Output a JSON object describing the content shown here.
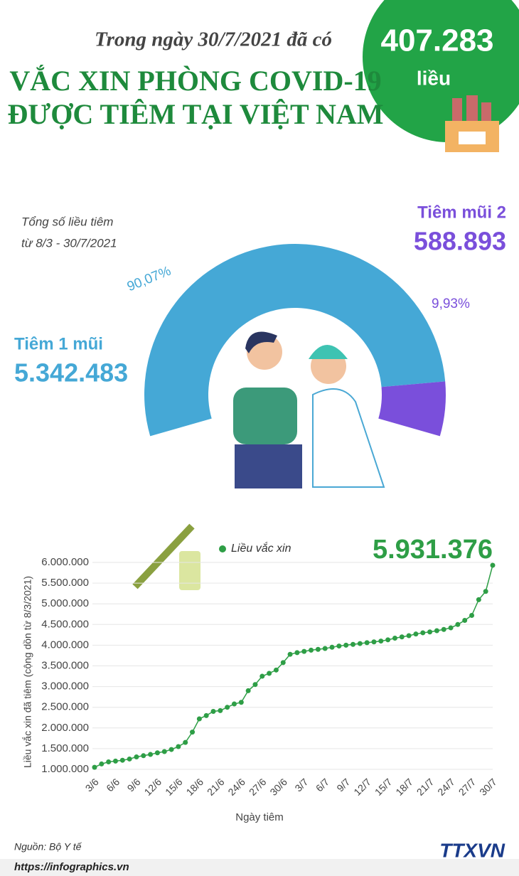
{
  "header": {
    "intro": "Trong ngày 30/7/2021 đã có",
    "number": "407.283",
    "unit": "liều",
    "title_line1": "VẮC XIN PHÒNG COVID-19",
    "title_line2": "ĐƯỢC TIÊM TẠI VIỆT NAM"
  },
  "chart_data": [
    {
      "type": "pie",
      "title": "Tổng số liều tiêm",
      "subtitle": "từ 8/3 - 30/7/2021",
      "categories": [
        "Tiêm 1 mũi",
        "Tiêm mũi 2"
      ],
      "values": [
        90.07,
        9.93
      ],
      "value_labels": [
        "90,07%",
        "9,93%"
      ],
      "colors": [
        "#45a8d6",
        "#7a4fdb"
      ],
      "counts": [
        5342483,
        588893
      ],
      "count_labels": [
        "5.342.483",
        "588.893"
      ]
    },
    {
      "type": "line",
      "x_label": "Ngày tiêm",
      "y_label": "Liều vắc xin đã tiêm (cộng dồn từ 8/3/2021)",
      "categories": [
        "3/6",
        null,
        null,
        "6/6",
        null,
        null,
        "9/6",
        null,
        null,
        "12/6",
        null,
        null,
        "15/6",
        null,
        null,
        "18/6",
        null,
        null,
        "21/6",
        null,
        null,
        "24/6",
        null,
        null,
        "27/6",
        null,
        null,
        "30/6",
        null,
        null,
        "3/7",
        null,
        null,
        "6/7",
        null,
        null,
        "9/7",
        null,
        null,
        "12/7",
        null,
        null,
        "15/7",
        null,
        null,
        "18/7",
        null,
        null,
        "21/7",
        null,
        null,
        "24/7",
        null,
        null,
        "27/7",
        null,
        null,
        "30/7"
      ],
      "series": [
        {
          "name": "Liều vắc xin",
          "color": "#2e9e46",
          "values": [
            1050000,
            1130000,
            1180000,
            1200000,
            1220000,
            1250000,
            1300000,
            1330000,
            1360000,
            1400000,
            1430000,
            1480000,
            1550000,
            1650000,
            1900000,
            2220000,
            2300000,
            2400000,
            2420000,
            2500000,
            2580000,
            2620000,
            2900000,
            3050000,
            3250000,
            3320000,
            3400000,
            3580000,
            3780000,
            3820000,
            3850000,
            3880000,
            3900000,
            3920000,
            3950000,
            3980000,
            4000000,
            4020000,
            4040000,
            4060000,
            4080000,
            4100000,
            4130000,
            4170000,
            4200000,
            4230000,
            4270000,
            4300000,
            4320000,
            4350000,
            4380000,
            4420000,
            4500000,
            4600000,
            4720000,
            5100000,
            5300000,
            5931376
          ],
          "value_labels": [
            null,
            null,
            null,
            null,
            null,
            null,
            null,
            null,
            null,
            null,
            null,
            null,
            null,
            null,
            null,
            null,
            null,
            null,
            null,
            null,
            null,
            null,
            null,
            null,
            null,
            null,
            null,
            null,
            null,
            null,
            null,
            null,
            null,
            null,
            null,
            null,
            null,
            null,
            null,
            null,
            null,
            null,
            null,
            null,
            null,
            null,
            null,
            null,
            null,
            null,
            null,
            null,
            null,
            null,
            null,
            null,
            null,
            "5.931.376"
          ]
        }
      ],
      "ylim": [
        1000000,
        6000000
      ],
      "yticks": [
        {
          "value": 1000000,
          "label": "1.000.000"
        },
        {
          "value": 1500000,
          "label": "1.500.000"
        },
        {
          "value": 2000000,
          "label": "2.000.000"
        },
        {
          "value": 2500000,
          "label": "2.500.000"
        },
        {
          "value": 3000000,
          "label": "3.000.000"
        },
        {
          "value": 3500000,
          "label": "3.500.000"
        },
        {
          "value": 4000000,
          "label": "4.000.000"
        },
        {
          "value": 4500000,
          "label": "4.500.000"
        },
        {
          "value": 5000000,
          "label": "5.000.000"
        },
        {
          "value": 5500000,
          "label": "5.500.000"
        },
        {
          "value": 6000000,
          "label": "6.000.000"
        }
      ],
      "grid": true
    }
  ],
  "footer": {
    "source": "Nguồn: Bộ Y tế",
    "url": "https://infographics.vn",
    "brand": "TTXVN"
  }
}
